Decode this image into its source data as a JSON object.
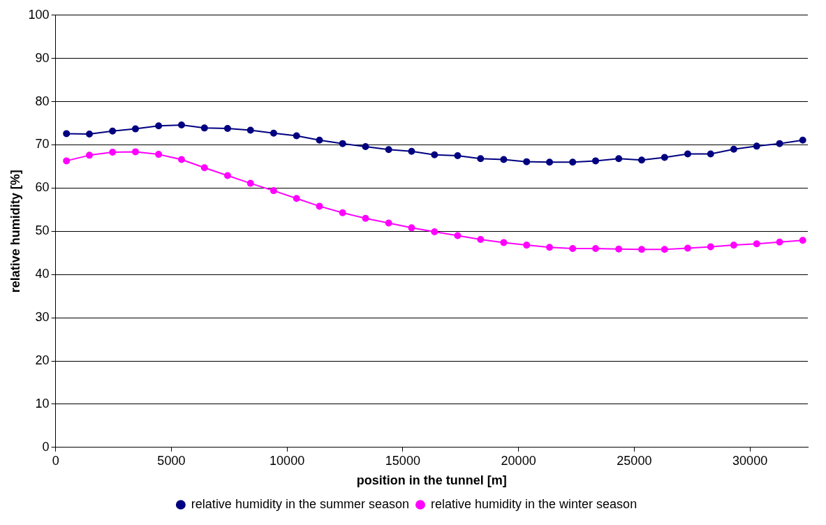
{
  "chart_data": {
    "type": "line",
    "xlabel": "position in the tunnel [m]",
    "ylabel": "relative humidity [%]",
    "x": [
      470,
      1460,
      2460,
      3450,
      4450,
      5440,
      6430,
      7430,
      8420,
      9420,
      10410,
      11400,
      12400,
      13390,
      14390,
      15380,
      16370,
      17370,
      18360,
      19360,
      20350,
      21340,
      22340,
      23330,
      24330,
      25320,
      26310,
      27310,
      28300,
      29300,
      30290,
      31280,
      32280
    ],
    "series": [
      {
        "name": "relative humidity in the summer season",
        "color": "#000080",
        "values": [
          72.6,
          72.5,
          73.2,
          73.7,
          74.4,
          74.6,
          73.9,
          73.8,
          73.4,
          72.7,
          72.1,
          71.1,
          70.3,
          69.6,
          68.9,
          68.5,
          67.7,
          67.5,
          66.8,
          66.6,
          66.1,
          66.0,
          66.0,
          66.3,
          66.8,
          66.5,
          67.1,
          67.9,
          67.9,
          69.0,
          69.7,
          70.3,
          71.1
        ]
      },
      {
        "name": "relative humidity in the winter season",
        "color": "#ff00ff",
        "values": [
          66.3,
          67.6,
          68.3,
          68.4,
          67.8,
          66.6,
          64.7,
          62.9,
          61.1,
          59.4,
          57.6,
          55.8,
          54.3,
          53.0,
          51.9,
          50.8,
          49.9,
          49.0,
          48.1,
          47.4,
          46.8,
          46.3,
          46.0,
          46.0,
          45.9,
          45.8,
          45.8,
          46.1,
          46.4,
          46.8,
          47.1,
          47.5,
          47.9
        ]
      }
    ],
    "xlim": [
      0,
      32500
    ],
    "xticks": [
      0,
      5000,
      10000,
      15000,
      20000,
      25000,
      30000
    ],
    "ylim": [
      0,
      100
    ],
    "yticks": [
      0,
      10,
      20,
      30,
      40,
      50,
      60,
      70,
      80,
      90,
      100
    ],
    "grid": "y",
    "legend": "bottom",
    "marker": "circle",
    "line_style": "solid"
  }
}
